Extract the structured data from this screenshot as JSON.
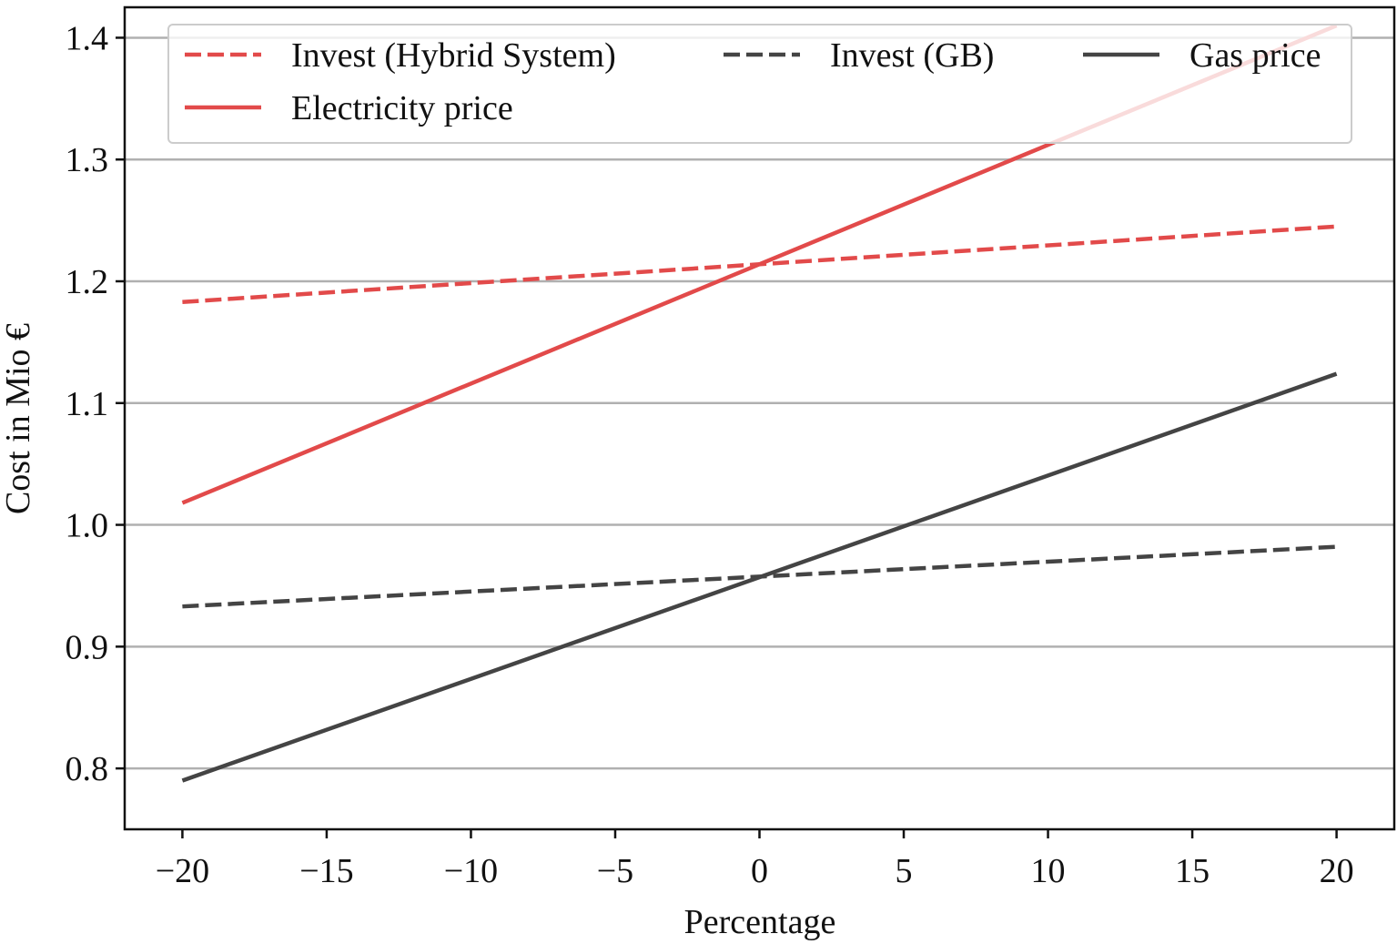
{
  "chart_data": {
    "type": "line",
    "title": "",
    "xlabel": "Percentage",
    "ylabel": "Cost in Mio €",
    "xlim": [
      -22,
      22
    ],
    "ylim": [
      0.75,
      1.425
    ],
    "xticks": [
      -20,
      -15,
      -10,
      -5,
      0,
      5,
      10,
      15,
      20
    ],
    "xtick_labels": [
      "−20",
      "−15",
      "−10",
      "−5",
      "0",
      "5",
      "10",
      "15",
      "20"
    ],
    "yticks": [
      0.8,
      0.9,
      1.0,
      1.1,
      1.2,
      1.3,
      1.4
    ],
    "ytick_labels": [
      "0.8",
      "0.9",
      "1.0",
      "1.1",
      "1.2",
      "1.3",
      "1.4"
    ],
    "grid": "horizontal",
    "legend_position": "top",
    "series": [
      {
        "name": "Invest (Hybrid System)",
        "color": "#e24a4a",
        "style": "dashed",
        "x": [
          -20,
          20
        ],
        "y": [
          1.183,
          1.245
        ]
      },
      {
        "name": "Invest (GB)",
        "color": "#444444",
        "style": "dashed",
        "x": [
          -20,
          20
        ],
        "y": [
          0.933,
          0.982
        ]
      },
      {
        "name": "Gas price",
        "color": "#444444",
        "style": "solid",
        "x": [
          -20,
          20
        ],
        "y": [
          0.79,
          1.124
        ]
      },
      {
        "name": "Electricity price",
        "color": "#e24a4a",
        "style": "solid",
        "x": [
          -20,
          20
        ],
        "y": [
          1.018,
          1.41
        ]
      }
    ]
  }
}
